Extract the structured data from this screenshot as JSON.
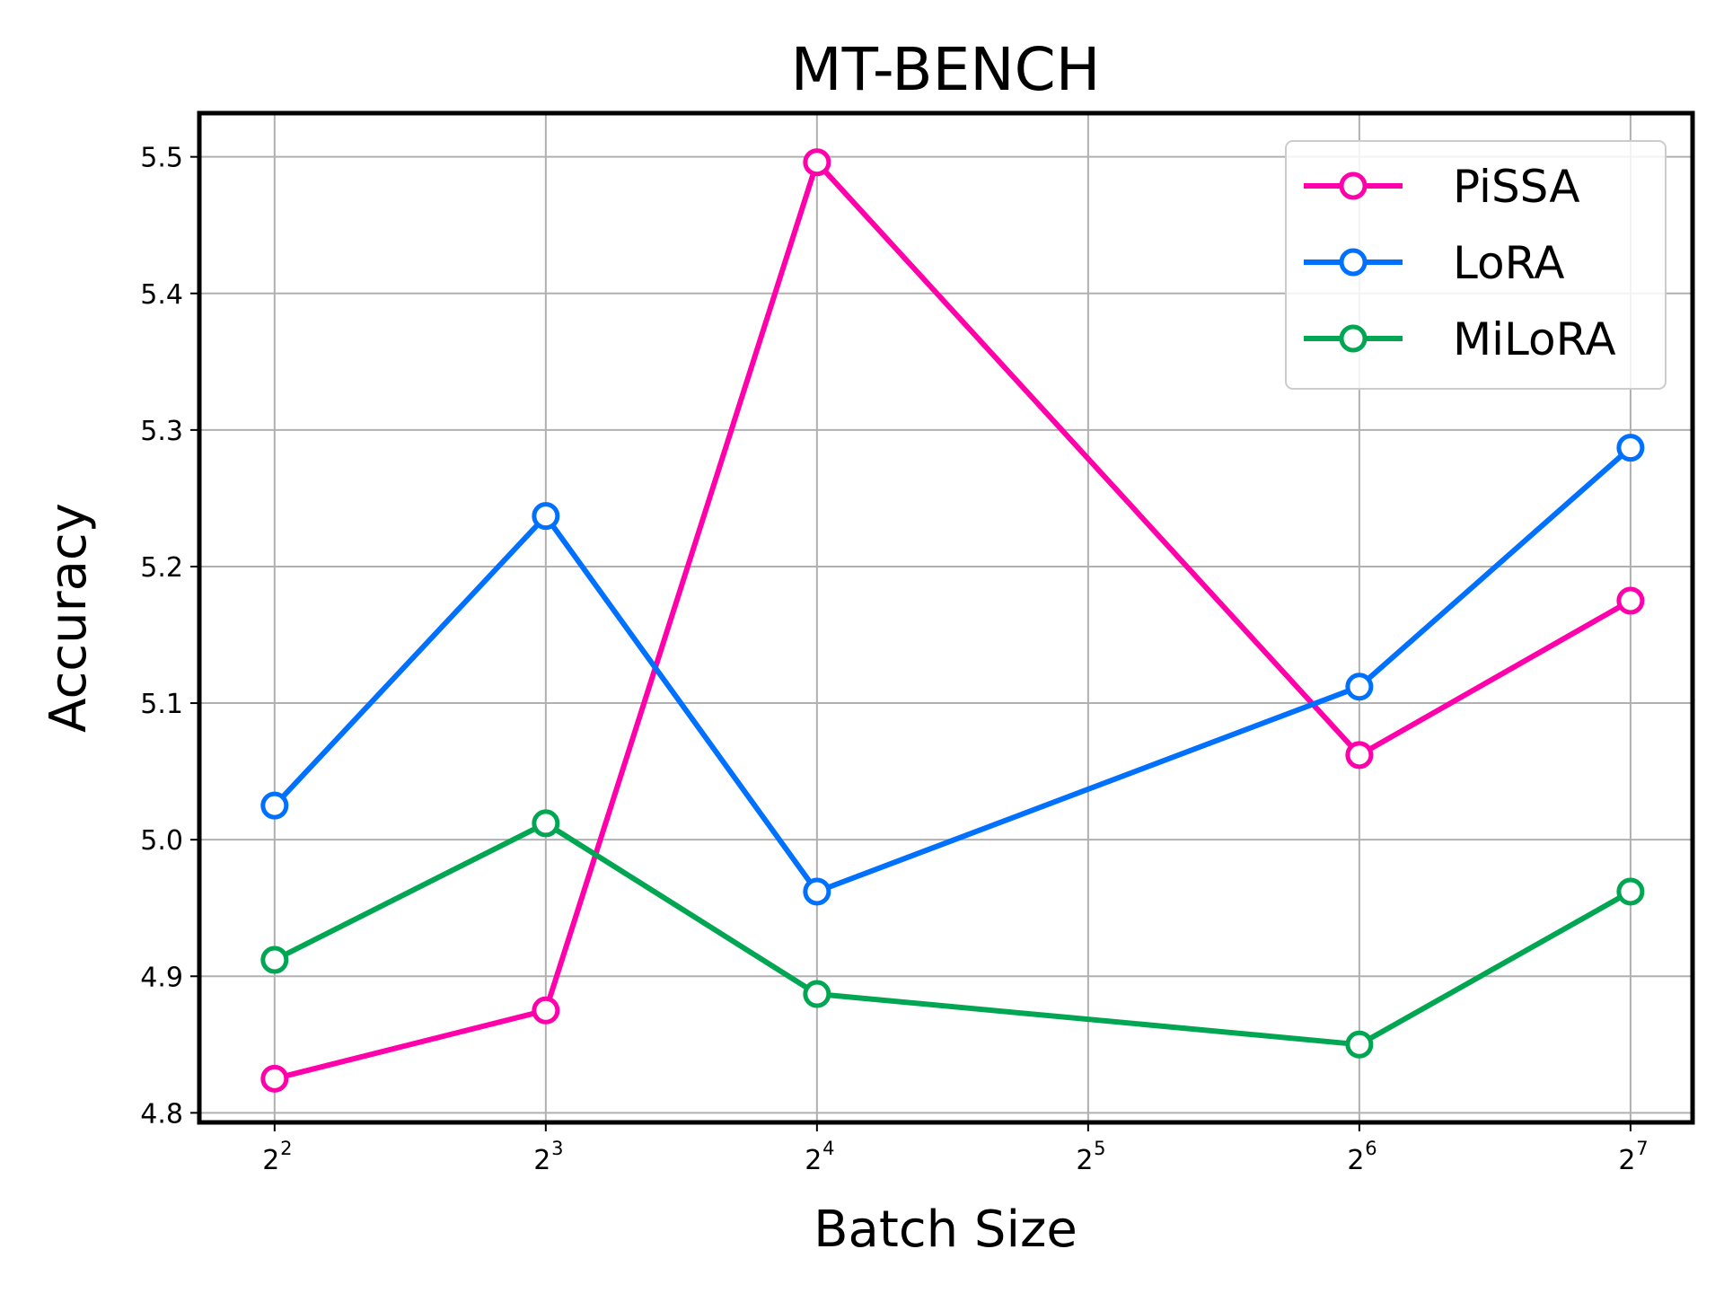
{
  "chart_data": {
    "type": "line",
    "title": "MT-BENCH",
    "xlabel": "Batch Size",
    "ylabel": "Accuracy",
    "x_scale": "log2",
    "x": [
      4,
      8,
      16,
      64,
      128
    ],
    "x_ticks": [
      {
        "value": 4,
        "base": "2",
        "exp": "2"
      },
      {
        "value": 8,
        "base": "2",
        "exp": "3"
      },
      {
        "value": 16,
        "base": "2",
        "exp": "4"
      },
      {
        "value": 32,
        "base": "2",
        "exp": "5"
      },
      {
        "value": 64,
        "base": "2",
        "exp": "6"
      },
      {
        "value": 128,
        "base": "2",
        "exp": "7"
      }
    ],
    "xlim": [
      3.3,
      150
    ],
    "ylim": [
      4.793,
      5.532
    ],
    "y_ticks": [
      "4.8",
      "4.9",
      "5.0",
      "5.1",
      "5.2",
      "5.3",
      "5.4",
      "5.5"
    ],
    "grid": true,
    "legend_position": "top-right",
    "series": [
      {
        "name": "PiSSA",
        "color": "#ff00aa",
        "values": [
          4.825,
          4.875,
          5.496,
          5.062,
          5.175
        ]
      },
      {
        "name": "LoRA",
        "color": "#0070ff",
        "values": [
          5.025,
          5.237,
          4.962,
          5.112,
          5.287
        ]
      },
      {
        "name": "MiLoRA",
        "color": "#00a651",
        "values": [
          4.912,
          5.012,
          4.887,
          4.85,
          4.962
        ]
      }
    ]
  }
}
